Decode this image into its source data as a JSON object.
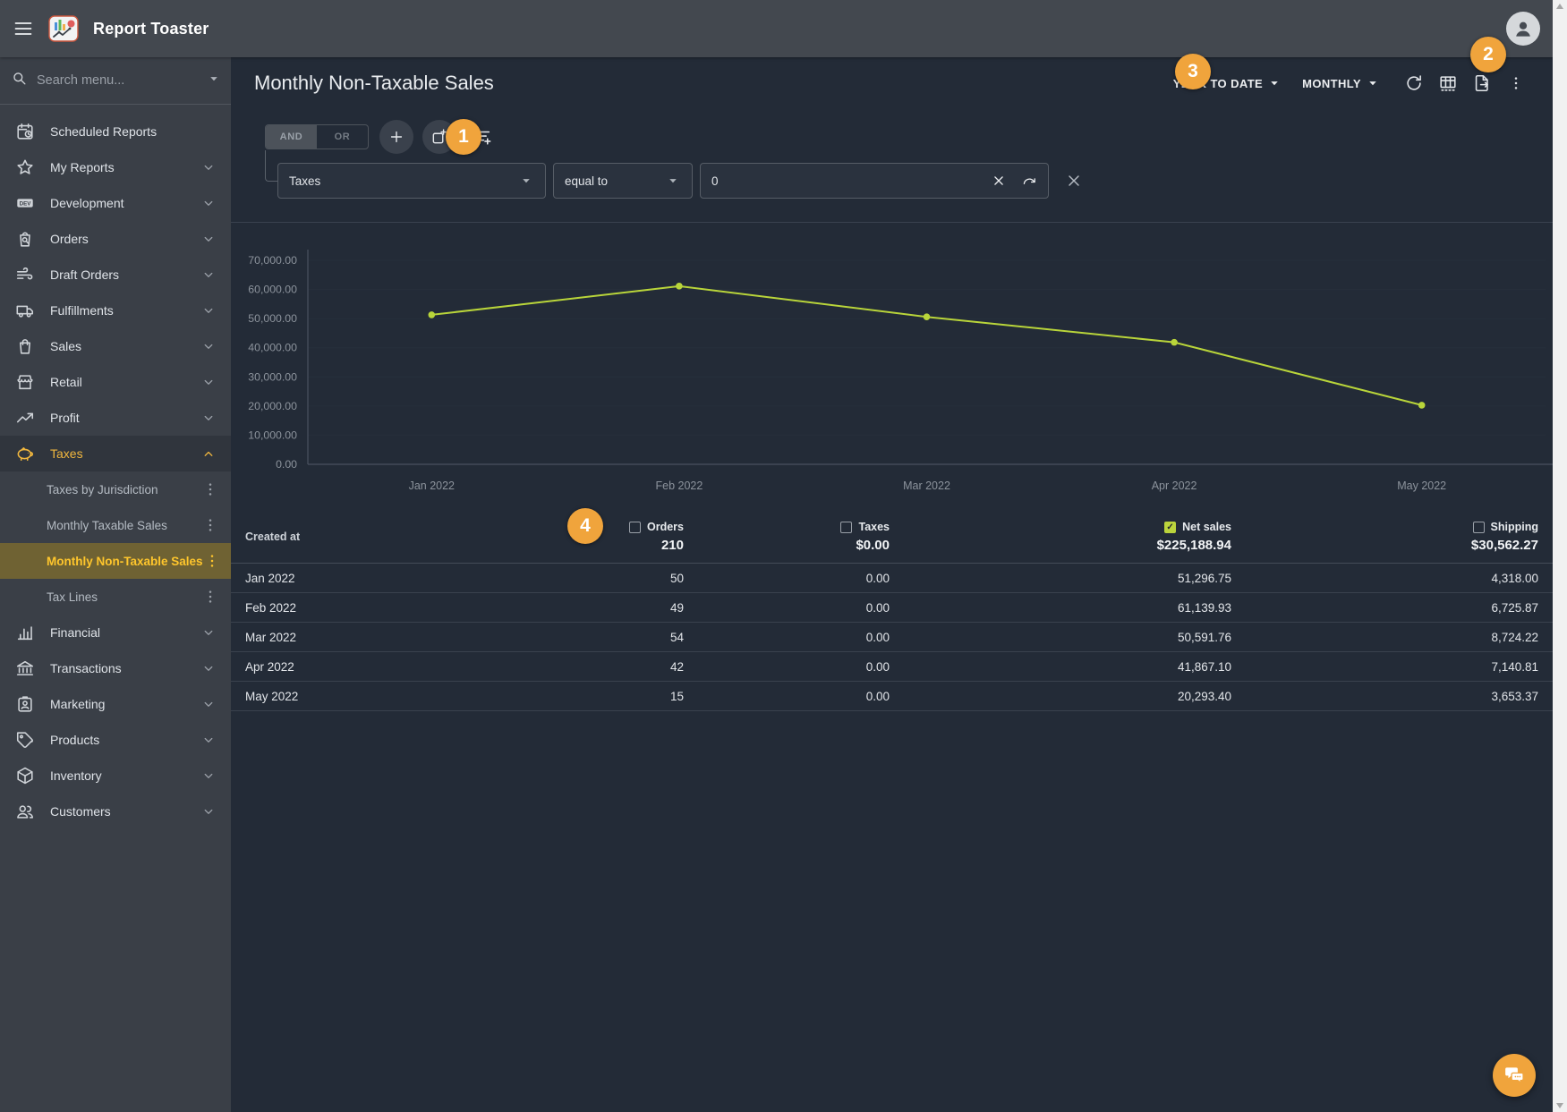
{
  "colors": {
    "accent": "#f0a43c",
    "chart_line": "#b9d53a",
    "selected_yellow": "#ffc62c",
    "checked_green": "#bbd43c"
  },
  "topbar": {
    "title": "Report Toaster"
  },
  "sidebar": {
    "search_placeholder": "Search menu...",
    "items": [
      {
        "label": "Scheduled Reports",
        "icon": "calendar-clock-icon",
        "chevron": "none",
        "type": "item"
      },
      {
        "label": "My Reports",
        "icon": "star-icon",
        "chevron": "down",
        "type": "item"
      },
      {
        "label": "Development",
        "icon": "dev-badge-icon",
        "chevron": "down",
        "type": "item"
      },
      {
        "label": "Orders",
        "icon": "order-search-icon",
        "chevron": "down",
        "type": "item"
      },
      {
        "label": "Draft Orders",
        "icon": "draft-orders-icon",
        "chevron": "down",
        "type": "item"
      },
      {
        "label": "Fulfillments",
        "icon": "truck-icon",
        "chevron": "down",
        "type": "item"
      },
      {
        "label": "Sales",
        "icon": "shopping-bag-icon",
        "chevron": "down",
        "type": "item"
      },
      {
        "label": "Retail",
        "icon": "storefront-icon",
        "chevron": "down",
        "type": "item"
      },
      {
        "label": "Profit",
        "icon": "trending-up-icon",
        "chevron": "down",
        "type": "item"
      },
      {
        "label": "Taxes",
        "icon": "piggy-bank-icon",
        "chevron": "up",
        "type": "item",
        "state": "expanded"
      },
      {
        "label": "Taxes by Jurisdiction",
        "type": "sub"
      },
      {
        "label": "Monthly Taxable Sales",
        "type": "sub"
      },
      {
        "label": "Monthly Non-Taxable Sales",
        "type": "sub",
        "state": "selected"
      },
      {
        "label": "Tax Lines",
        "type": "sub"
      },
      {
        "label": "Financial",
        "icon": "finance-chart-icon",
        "chevron": "down",
        "type": "item"
      },
      {
        "label": "Transactions",
        "icon": "bank-icon",
        "chevron": "down",
        "type": "item"
      },
      {
        "label": "Marketing",
        "icon": "id-badge-icon",
        "chevron": "down",
        "type": "item"
      },
      {
        "label": "Products",
        "icon": "tag-icon",
        "chevron": "down",
        "type": "item"
      },
      {
        "label": "Inventory",
        "icon": "box-icon",
        "chevron": "down",
        "type": "item"
      },
      {
        "label": "Customers",
        "icon": "people-icon",
        "chevron": "down",
        "type": "item"
      }
    ]
  },
  "report": {
    "title": "Monthly Non-Taxable Sales",
    "date_range": "YEAR TO DATE",
    "granularity": "MONTHLY",
    "actions": [
      {
        "name": "refresh",
        "icon": "refresh-icon"
      },
      {
        "name": "table-view",
        "icon": "table-columns-icon"
      },
      {
        "name": "export",
        "icon": "file-export-icon"
      },
      {
        "name": "more",
        "icon": "kebab-icon"
      }
    ]
  },
  "filter": {
    "and_label": "AND",
    "or_label": "OR",
    "toolbar": [
      {
        "name": "add-condition",
        "icon": "plus-icon",
        "circle": true
      },
      {
        "name": "add-group",
        "icon": "add-group-icon",
        "circle": true
      },
      {
        "name": "add-filter",
        "icon": "filter-add-icon",
        "circle": false
      }
    ],
    "field": "Taxes",
    "operator": "equal to",
    "value": "0"
  },
  "chart_data": {
    "type": "line",
    "title": "",
    "xlabel": "",
    "ylabel": "",
    "categories": [
      "Jan 2022",
      "Feb 2022",
      "Mar 2022",
      "Apr 2022",
      "May 2022"
    ],
    "series": [
      {
        "name": "Net sales",
        "values": [
          51296.75,
          61139.93,
          50591.76,
          41867.1,
          20293.4
        ]
      }
    ],
    "ylim": [
      0,
      70000
    ],
    "y_ticks": [
      "0.00",
      "10,000.00",
      "20,000.00",
      "30,000.00",
      "40,000.00",
      "50,000.00",
      "60,000.00",
      "70,000.00"
    ],
    "grid": false,
    "legend": false
  },
  "table": {
    "row_header": "Created at",
    "columns": [
      {
        "label": "Orders",
        "total": "210",
        "checked": false
      },
      {
        "label": "Taxes",
        "total": "$0.00",
        "checked": false
      },
      {
        "label": "Net sales",
        "total": "$225,188.94",
        "checked": true
      },
      {
        "label": "Shipping",
        "total": "$30,562.27",
        "checked": false
      }
    ],
    "rows": [
      {
        "label": "Jan 2022",
        "values": [
          "50",
          "0.00",
          "51,296.75",
          "4,318.00"
        ]
      },
      {
        "label": "Feb 2022",
        "values": [
          "49",
          "0.00",
          "61,139.93",
          "6,725.87"
        ]
      },
      {
        "label": "Mar 2022",
        "values": [
          "54",
          "0.00",
          "50,591.76",
          "8,724.22"
        ]
      },
      {
        "label": "Apr 2022",
        "values": [
          "42",
          "0.00",
          "41,867.10",
          "7,140.81"
        ]
      },
      {
        "label": "May 2022",
        "values": [
          "15",
          "0.00",
          "20,293.40",
          "3,653.37"
        ]
      }
    ]
  },
  "annotations": [
    {
      "number": "1"
    },
    {
      "number": "2"
    },
    {
      "number": "3"
    },
    {
      "number": "4"
    }
  ]
}
